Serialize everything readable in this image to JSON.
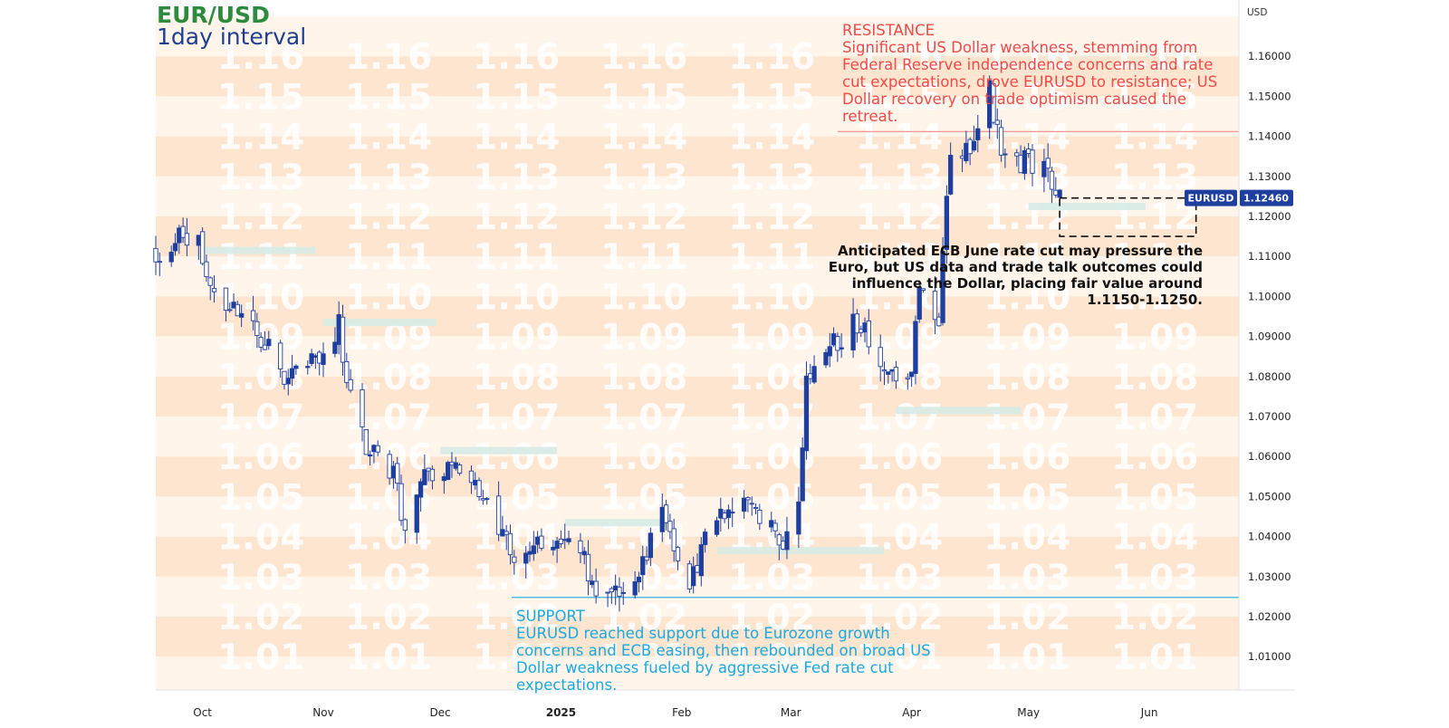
{
  "chart_data": {
    "type": "candlestick",
    "title": "EUR/USD",
    "subtitle": "1day interval",
    "currency_label": "USD",
    "ylim": [
      1.0,
      1.17
    ],
    "ytick_values": [
      1.01,
      1.02,
      1.03,
      1.04,
      1.05,
      1.06,
      1.07,
      1.08,
      1.09,
      1.1,
      1.11,
      1.12,
      1.13,
      1.14,
      1.15,
      1.16
    ],
    "ytick_labels": [
      "1.01000",
      "1.02000",
      "1.03000",
      "1.04000",
      "1.05000",
      "1.06000",
      "1.07000",
      "1.08000",
      "1.09000",
      "1.10000",
      "1.11000",
      "1.12000",
      "1.13000",
      "1.14000",
      "1.15000",
      "1.16000"
    ],
    "watermark_labels": [
      "1.16",
      "1.15",
      "1.14",
      "1.13",
      "1.12",
      "1.11",
      "1.10",
      "1.09",
      "1.08",
      "1.07",
      "1.06",
      "1.05",
      "1.04",
      "1.03",
      "1.02",
      "1.01"
    ],
    "x_range": [
      "2024-09-19",
      "2025-06-24"
    ],
    "x_ticks": [
      {
        "label": "Oct",
        "date": "2024-10-01"
      },
      {
        "label": "Nov",
        "date": "2024-11-01"
      },
      {
        "label": "Dec",
        "date": "2024-12-01"
      },
      {
        "label": "2025",
        "date": "2025-01-01",
        "bold": true
      },
      {
        "label": "Feb",
        "date": "2025-02-01"
      },
      {
        "label": "Mar",
        "date": "2025-03-01"
      },
      {
        "label": "Apr",
        "date": "2025-04-01"
      },
      {
        "label": "May",
        "date": "2025-05-01"
      },
      {
        "label": "Jun",
        "date": "2025-06-01"
      }
    ],
    "anchors": [
      [
        "2024-09-19",
        1.1115
      ],
      [
        "2024-09-23",
        1.1115
      ],
      [
        "2024-09-26",
        1.1165
      ],
      [
        "2024-09-30",
        1.1135
      ],
      [
        "2024-10-03",
        1.1035
      ],
      [
        "2024-10-08",
        1.0975
      ],
      [
        "2024-10-14",
        1.0915
      ],
      [
        "2024-10-18",
        1.0865
      ],
      [
        "2024-10-23",
        1.0785
      ],
      [
        "2024-10-31",
        1.0855
      ],
      [
        "2024-11-05",
        1.0925
      ],
      [
        "2024-11-07",
        1.0765
      ],
      [
        "2024-11-12",
        1.0625
      ],
      [
        "2024-11-19",
        1.0555
      ],
      [
        "2024-11-22",
        1.0415
      ],
      [
        "2024-11-27",
        1.0565
      ],
      [
        "2024-12-06",
        1.0575
      ],
      [
        "2024-12-12",
        1.0485
      ],
      [
        "2024-12-20",
        1.0365
      ],
      [
        "2024-12-31",
        1.0385
      ],
      [
        "2025-01-07",
        1.0345
      ],
      [
        "2025-01-10",
        1.0245
      ],
      [
        "2025-01-13",
        1.0255
      ],
      [
        "2025-01-20",
        1.0285
      ],
      [
        "2025-01-27",
        1.0455
      ],
      [
        "2025-02-03",
        1.0255
      ],
      [
        "2025-02-06",
        1.0375
      ],
      [
        "2025-02-14",
        1.0485
      ],
      [
        "2025-02-21",
        1.0455
      ],
      [
        "2025-02-28",
        1.0385
      ],
      [
        "2025-03-03",
        1.0485
      ],
      [
        "2025-03-05",
        1.0795
      ],
      [
        "2025-03-12",
        1.0885
      ],
      [
        "2025-03-18",
        1.0935
      ],
      [
        "2025-03-27",
        1.0795
      ],
      [
        "2025-04-01",
        1.0795
      ],
      [
        "2025-04-03",
        1.1035
      ],
      [
        "2025-04-08",
        1.0955
      ],
      [
        "2025-04-11",
        1.1355
      ],
      [
        "2025-04-17",
        1.1385
      ],
      [
        "2025-04-21",
        1.1515
      ],
      [
        "2025-04-24",
        1.1345
      ],
      [
        "2025-04-30",
        1.1335
      ],
      [
        "2025-05-05",
        1.1325
      ],
      [
        "2025-05-08",
        1.1225
      ],
      [
        "2025-05-09",
        1.1246
      ]
    ],
    "bear_boxes": [
      {
        "start": "2024-10-01",
        "end": "2024-10-30",
        "y": 1.1115
      },
      {
        "start": "2024-11-01",
        "end": "2024-11-30",
        "y": 1.0935
      },
      {
        "start": "2024-12-01",
        "end": "2024-12-31",
        "y": 1.0615
      },
      {
        "start": "2025-01-02",
        "end": "2025-01-28",
        "y": 1.0435
      },
      {
        "start": "2025-02-10",
        "end": "2025-03-25",
        "y": 1.0365
      },
      {
        "start": "2025-03-28",
        "end": "2025-04-29",
        "y": 1.0715
      },
      {
        "start": "2025-05-01",
        "end": "2025-05-31",
        "y": 1.1225
      }
    ],
    "resistance_level": 1.1412,
    "support_level": 1.0248,
    "current_price": 1.1246,
    "current_price_label": "1.12460",
    "symbol_label": "EURUSD",
    "projection_box": {
      "start": "2025-05-09",
      "end": "2025-06-13",
      "y_top": 1.1246,
      "y_bottom": 1.115
    },
    "annotations": {
      "resistance_head": "RESISTANCE",
      "resistance_text": "Significant US Dollar weakness, stemming from Federal Reserve independence concerns and rate cut expectations, drove EURUSD to resistance; US Dollar recovery on trade optimism caused the retreat.",
      "support_head": "SUPPORT",
      "support_text": "EURUSD reached support due to Eurozone growth concerns and ECB easing, then rebounded on broad US Dollar weakness fueled by aggressive Fed rate cut expectations.",
      "ecb_text": "Anticipated ECB June rate cut may pressure the Euro, but US data and trade talk outcomes could influence the Dollar, placing fair value around 1.1150-1.1250."
    },
    "colors": {
      "bull": "#1f3f9f",
      "bear_box": "#d7ebe6",
      "background_band_a": "#fff5eb",
      "background_band_b": "#fde5cf",
      "watermark": "#ffffff",
      "resistance": "#f08a8a",
      "support": "#39b2e0",
      "price_tag": "#1f3f9f"
    }
  }
}
